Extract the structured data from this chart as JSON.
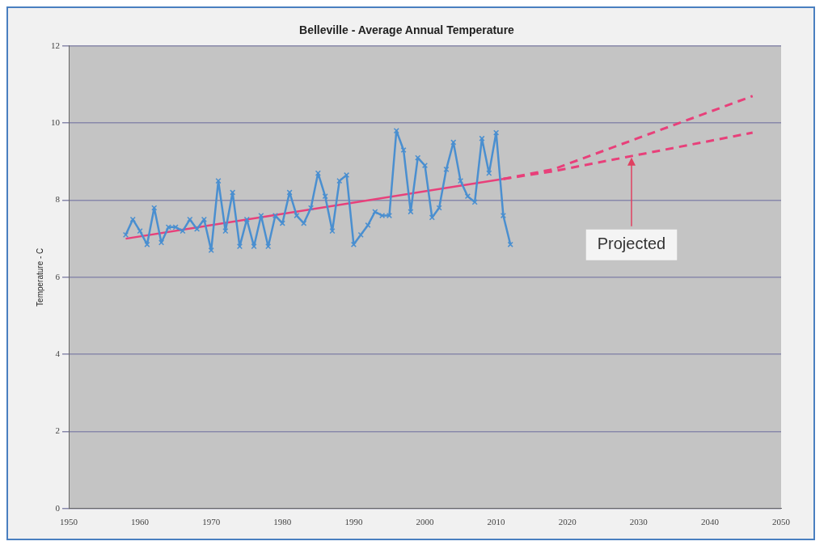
{
  "chart_data": {
    "type": "line",
    "title": "Belleville - Average Annual Temperature",
    "ylabel": "Temperature - C",
    "xlim": [
      1950,
      2050
    ],
    "xticks": [
      1950,
      1960,
      1970,
      1980,
      1990,
      2000,
      2010,
      2020,
      2030,
      2040,
      2050
    ],
    "ylim": [
      0,
      12
    ],
    "yticks": [
      0,
      2,
      4,
      6,
      8,
      10,
      12
    ],
    "grid": "y",
    "legend": false,
    "annotations": [
      {
        "text": "Projected",
        "x": 2029,
        "y": 9.15
      }
    ],
    "series": [
      {
        "color": "#4a8fd0",
        "marker": "cross",
        "line_style": "solid",
        "x": [
          1958,
          1959,
          1960,
          1961,
          1962,
          1963,
          1964,
          1965,
          1966,
          1967,
          1968,
          1969,
          1970,
          1971,
          1972,
          1973,
          1974,
          1975,
          1976,
          1977,
          1978,
          1979,
          1980,
          1981,
          1982,
          1983,
          1984,
          1985,
          1986,
          1987,
          1988,
          1989,
          1990,
          1991,
          1992,
          1993,
          1994,
          1995,
          1996,
          1997,
          1998,
          1999,
          2000,
          2001,
          2002,
          2003,
          2004,
          2005,
          2006,
          2007,
          2008,
          2009,
          2010,
          2011,
          2012
        ],
        "values": [
          7.1,
          7.5,
          7.2,
          6.85,
          7.8,
          6.9,
          7.3,
          7.3,
          7.2,
          7.5,
          7.25,
          7.5,
          6.7,
          8.5,
          7.2,
          8.2,
          6.8,
          7.5,
          6.8,
          7.6,
          6.8,
          7.6,
          7.4,
          8.2,
          7.6,
          7.4,
          7.8,
          8.7,
          8.1,
          7.2,
          8.5,
          8.65,
          6.85,
          7.1,
          7.35,
          7.7,
          7.6,
          7.6,
          9.8,
          9.3,
          7.7,
          9.1,
          8.9,
          7.55,
          7.8,
          8.8,
          9.5,
          8.5,
          8.1,
          7.95,
          9.6,
          8.7,
          9.75,
          7.6,
          6.85
        ]
      },
      {
        "type": "line",
        "color": "#e8407a",
        "marker": "none",
        "line_style": "solid",
        "x": [
          1958,
          2011
        ],
        "values": [
          7.0,
          8.55
        ]
      },
      {
        "type": "line",
        "color": "#e8407a",
        "marker": "none",
        "line_style": "dashed",
        "x": [
          2011,
          2018,
          2046
        ],
        "values": [
          8.55,
          8.8,
          10.7
        ]
      },
      {
        "type": "line",
        "color": "#e8407a",
        "marker": "none",
        "line_style": "dashed",
        "x": [
          2011,
          2018,
          2046
        ],
        "values": [
          8.55,
          8.75,
          9.75
        ]
      }
    ]
  }
}
